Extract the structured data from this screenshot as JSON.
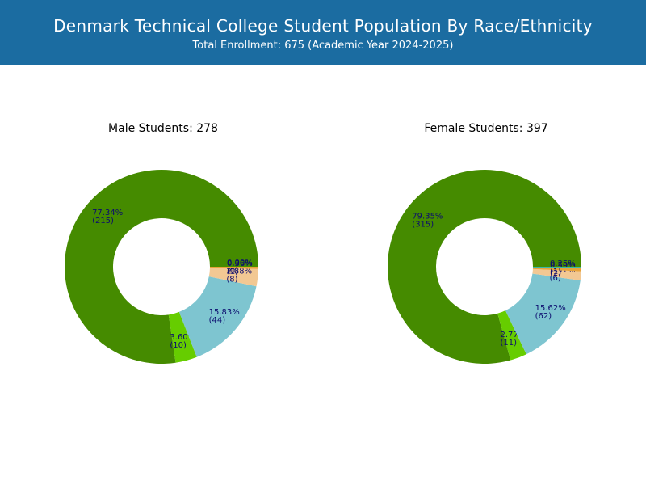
{
  "header": {
    "title": "Denmark Technical College Student Population By Race/Ethnicity",
    "subtitle": "Total Enrollment: 675 (Academic Year 2024-2025)",
    "background": "#1b6ca1"
  },
  "chart_data": [
    {
      "type": "pie",
      "donut": true,
      "title": "Male Students: 278",
      "start_angle_deg": 0,
      "direction": "counterclockwise",
      "slices": [
        {
          "label": "77.34%",
          "count": "(215)",
          "value": 215,
          "pct": 77.34,
          "color": "#458b00"
        },
        {
          "label": "3.60%",
          "count": "(10)",
          "value": 10,
          "pct": 3.6,
          "color": "#66cd00"
        },
        {
          "label": "15.83%",
          "count": "(44)",
          "value": 44,
          "pct": 15.83,
          "color": "#7ec5d0"
        },
        {
          "label": "2.88%",
          "count": "(8)",
          "value": 8,
          "pct": 2.88,
          "color": "#f2c893"
        },
        {
          "label": "0.36%",
          "count": "(1)",
          "value": 1,
          "pct": 0.36,
          "color": "#e8a33a"
        },
        {
          "label": "0.00%",
          "count": "(0)",
          "value": 0,
          "pct": 0.0,
          "color": "#4a7ab5"
        }
      ]
    },
    {
      "type": "pie",
      "donut": true,
      "title": "Female Students: 397",
      "start_angle_deg": 0,
      "direction": "counterclockwise",
      "slices": [
        {
          "label": "79.35%",
          "count": "(315)",
          "value": 315,
          "pct": 79.35,
          "color": "#458b00"
        },
        {
          "label": "2.77%",
          "count": "(11)",
          "value": 11,
          "pct": 2.77,
          "color": "#66cd00"
        },
        {
          "label": "15.62%",
          "count": "(62)",
          "value": 62,
          "pct": 15.62,
          "color": "#7ec5d0"
        },
        {
          "label": "1.51%",
          "count": "(6)",
          "value": 6,
          "pct": 1.51,
          "color": "#f2c893"
        },
        {
          "label": "0.50%",
          "count": "(2)",
          "value": 2,
          "pct": 0.5,
          "color": "#e8a33a"
        },
        {
          "label": "0.25%",
          "count": "(1)",
          "value": 1,
          "pct": 0.25,
          "color": "#3cb8a8"
        }
      ]
    }
  ]
}
